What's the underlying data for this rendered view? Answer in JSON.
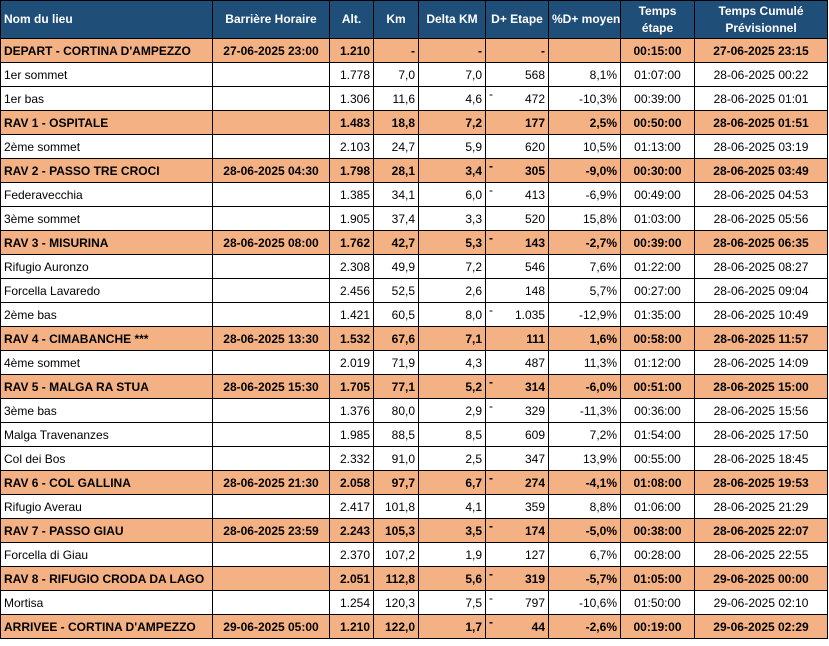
{
  "headers": {
    "nom": "Nom du lieu",
    "barriere": "Barrière Horaire",
    "alt": "Alt.",
    "km": "Km",
    "delta": "Delta KM",
    "dplus": "D+ Etape",
    "pct": "%D+ moyen",
    "temps_line1": "Temps",
    "temps_line2": "étape",
    "cumul_line1": "Temps Cumulé",
    "cumul_line2": "Prévisionnel"
  },
  "rows": [
    {
      "kind": "rav",
      "nom": "DEPART - CORTINA D'AMPEZZO",
      "barriere": "27-06-2025 23:00",
      "alt": "1.210",
      "km": "-",
      "delta": "-",
      "sign": "",
      "dplus": "-",
      "pct": "",
      "temps": "00:15:00",
      "cumul": "27-06-2025 23:15"
    },
    {
      "kind": "plain",
      "nom": "1er sommet",
      "barriere": "",
      "alt": "1.778",
      "km": "7,0",
      "delta": "7,0",
      "sign": "",
      "dplus": "568",
      "pct": "8,1%",
      "temps": "01:07:00",
      "cumul": "28-06-2025 00:22"
    },
    {
      "kind": "plain",
      "nom": "1er bas",
      "barriere": "",
      "alt": "1.306",
      "km": "11,6",
      "delta": "4,6",
      "sign": "-",
      "dplus": "472",
      "pct": "-10,3%",
      "temps": "00:39:00",
      "cumul": "28-06-2025 01:01"
    },
    {
      "kind": "rav",
      "nom": "RAV 1 - OSPITALE",
      "barriere": "",
      "alt": "1.483",
      "km": "18,8",
      "delta": "7,2",
      "sign": "",
      "dplus": "177",
      "pct": "2,5%",
      "temps": "00:50:00",
      "cumul": "28-06-2025 01:51"
    },
    {
      "kind": "plain",
      "nom": "2ème sommet",
      "barriere": "",
      "alt": "2.103",
      "km": "24,7",
      "delta": "5,9",
      "sign": "",
      "dplus": "620",
      "pct": "10,5%",
      "temps": "01:13:00",
      "cumul": "28-06-2025 03:19"
    },
    {
      "kind": "rav",
      "nom": "RAV 2 - PASSO TRE CROCI",
      "barriere": "28-06-2025 04:30",
      "alt": "1.798",
      "km": "28,1",
      "delta": "3,4",
      "sign": "-",
      "dplus": "305",
      "pct": "-9,0%",
      "temps": "00:30:00",
      "cumul": "28-06-2025 03:49"
    },
    {
      "kind": "plain",
      "nom": "Federavecchia",
      "barriere": "",
      "alt": "1.385",
      "km": "34,1",
      "delta": "6,0",
      "sign": "-",
      "dplus": "413",
      "pct": "-6,9%",
      "temps": "00:49:00",
      "cumul": "28-06-2025 04:53"
    },
    {
      "kind": "plain",
      "nom": "3ème sommet",
      "barriere": "",
      "alt": "1.905",
      "km": "37,4",
      "delta": "3,3",
      "sign": "",
      "dplus": "520",
      "pct": "15,8%",
      "temps": "01:03:00",
      "cumul": "28-06-2025 05:56"
    },
    {
      "kind": "rav",
      "nom": "RAV 3 - MISURINA",
      "barriere": "28-06-2025 08:00",
      "alt": "1.762",
      "km": "42,7",
      "delta": "5,3",
      "sign": "-",
      "dplus": "143",
      "pct": "-2,7%",
      "temps": "00:39:00",
      "cumul": "28-06-2025 06:35"
    },
    {
      "kind": "plain",
      "nom": "Rifugio Auronzo",
      "barriere": "",
      "alt": "2.308",
      "km": "49,9",
      "delta": "7,2",
      "sign": "",
      "dplus": "546",
      "pct": "7,6%",
      "temps": "01:22:00",
      "cumul": "28-06-2025 08:27"
    },
    {
      "kind": "plain",
      "nom": "Forcella Lavaredo",
      "barriere": "",
      "alt": "2.456",
      "km": "52,5",
      "delta": "2,6",
      "sign": "",
      "dplus": "148",
      "pct": "5,7%",
      "temps": "00:27:00",
      "cumul": "28-06-2025 09:04"
    },
    {
      "kind": "plain",
      "nom": "2ème bas",
      "barriere": "",
      "alt": "1.421",
      "km": "60,5",
      "delta": "8,0",
      "sign": "-",
      "dplus": "1.035",
      "pct": "-12,9%",
      "temps": "01:35:00",
      "cumul": "28-06-2025 10:49"
    },
    {
      "kind": "rav",
      "nom": "RAV 4 - CIMABANCHE ***",
      "barriere": "28-06-2025 13:30",
      "alt": "1.532",
      "km": "67,6",
      "delta": "7,1",
      "sign": "",
      "dplus": "111",
      "pct": "1,6%",
      "temps": "00:58:00",
      "cumul": "28-06-2025 11:57"
    },
    {
      "kind": "plain",
      "nom": "4ème sommet",
      "barriere": "",
      "alt": "2.019",
      "km": "71,9",
      "delta": "4,3",
      "sign": "",
      "dplus": "487",
      "pct": "11,3%",
      "temps": "01:12:00",
      "cumul": "28-06-2025 14:09"
    },
    {
      "kind": "rav",
      "nom": "RAV 5 - MALGA RA STUA",
      "barriere": "28-06-2025 15:30",
      "alt": "1.705",
      "km": "77,1",
      "delta": "5,2",
      "sign": "-",
      "dplus": "314",
      "pct": "-6,0%",
      "temps": "00:51:00",
      "cumul": "28-06-2025 15:00"
    },
    {
      "kind": "plain",
      "nom": "3ème bas",
      "barriere": "",
      "alt": "1.376",
      "km": "80,0",
      "delta": "2,9",
      "sign": "-",
      "dplus": "329",
      "pct": "-11,3%",
      "temps": "00:36:00",
      "cumul": "28-06-2025 15:56"
    },
    {
      "kind": "plain",
      "nom": "Malga Travenanzes",
      "barriere": "",
      "alt": "1.985",
      "km": "88,5",
      "delta": "8,5",
      "sign": "",
      "dplus": "609",
      "pct": "7,2%",
      "temps": "01:54:00",
      "cumul": "28-06-2025 17:50"
    },
    {
      "kind": "plain",
      "nom": "Col dei Bos",
      "barriere": "",
      "alt": "2.332",
      "km": "91,0",
      "delta": "2,5",
      "sign": "",
      "dplus": "347",
      "pct": "13,9%",
      "temps": "00:55:00",
      "cumul": "28-06-2025 18:45"
    },
    {
      "kind": "rav",
      "nom": "RAV 6 - COL GALLINA",
      "barriere": "28-06-2025 21:30",
      "alt": "2.058",
      "km": "97,7",
      "delta": "6,7",
      "sign": "-",
      "dplus": "274",
      "pct": "-4,1%",
      "temps": "01:08:00",
      "cumul": "28-06-2025 19:53"
    },
    {
      "kind": "plain",
      "nom": "Rifugio Averau",
      "barriere": "",
      "alt": "2.417",
      "km": "101,8",
      "delta": "4,1",
      "sign": "",
      "dplus": "359",
      "pct": "8,8%",
      "temps": "01:06:00",
      "cumul": "28-06-2025 21:29"
    },
    {
      "kind": "rav",
      "nom": "RAV 7 - PASSO GIAU",
      "barriere": "28-06-2025 23:59",
      "alt": "2.243",
      "km": "105,3",
      "delta": "3,5",
      "sign": "-",
      "dplus": "174",
      "pct": "-5,0%",
      "temps": "00:38:00",
      "cumul": "28-06-2025 22:07"
    },
    {
      "kind": "plain",
      "nom": "Forcella di Giau",
      "barriere": "",
      "alt": "2.370",
      "km": "107,2",
      "delta": "1,9",
      "sign": "",
      "dplus": "127",
      "pct": "6,7%",
      "temps": "00:28:00",
      "cumul": "28-06-2025 22:55"
    },
    {
      "kind": "rav",
      "nom": "RAV 8 - RIFUGIO CRODA DA LAGO",
      "barriere": "",
      "alt": "2.051",
      "km": "112,8",
      "delta": "5,6",
      "sign": "-",
      "dplus": "319",
      "pct": "-5,7%",
      "temps": "01:05:00",
      "cumul": "29-06-2025 00:00"
    },
    {
      "kind": "plain",
      "nom": "Mortisa",
      "barriere": "",
      "alt": "1.254",
      "km": "120,3",
      "delta": "7,5",
      "sign": "-",
      "dplus": "797",
      "pct": "-10,6%",
      "temps": "01:50:00",
      "cumul": "29-06-2025 02:10"
    },
    {
      "kind": "rav",
      "nom": "ARRIVEE - CORTINA D'AMPEZZO",
      "barriere": "29-06-2025 05:00",
      "alt": "1.210",
      "km": "122,0",
      "delta": "1,7",
      "sign": "-",
      "dplus": "44",
      "pct": "-2,6%",
      "temps": "00:19:00",
      "cumul": "29-06-2025 02:29"
    }
  ],
  "colors": {
    "header_bg": "#1f4e79",
    "header_text": "#ffffff",
    "rav_row_bg": "#f4b183",
    "plain_row_bg": "#ffffff",
    "grid": "#000000"
  }
}
